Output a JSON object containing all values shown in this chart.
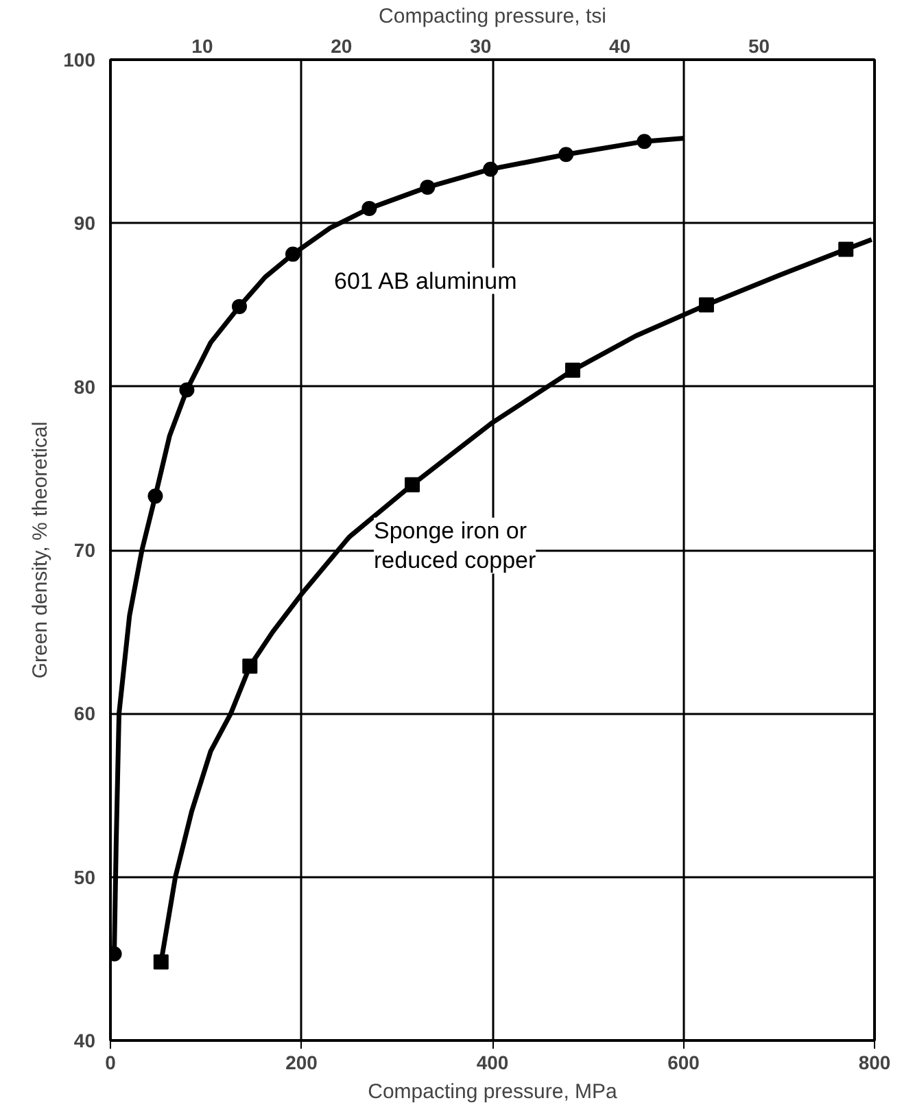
{
  "chart_data": {
    "type": "line",
    "xlabel": "Compacting pressure, MPa",
    "x2label": "Compacting pressure, tsi",
    "ylabel": "Green density, % theoretical",
    "xlim": [
      0,
      800
    ],
    "xticks": [
      0,
      200,
      400,
      600,
      800
    ],
    "ylim": [
      40,
      100
    ],
    "yticks": [
      40,
      50,
      60,
      70,
      80,
      90,
      100
    ],
    "x2lim": [
      3.4,
      58.3
    ],
    "x2ticks": [
      10,
      20,
      30,
      40,
      50
    ],
    "grid": true,
    "series": [
      {
        "color": "#000000",
        "x": [
          4,
          6,
          9,
          20,
          33,
          47,
          62,
          80,
          105,
          135,
          162,
          191,
          230,
          271,
          332,
          398,
          477,
          559,
          601
        ],
        "values": [
          45.3,
          52,
          60,
          66,
          70,
          73.3,
          77,
          79.8,
          82.7,
          84.9,
          86.7,
          88.1,
          89.7,
          90.9,
          92.2,
          93.3,
          94.2,
          95.0,
          95.2
        ]
      },
      {
        "color": "#000000",
        "x": [
          53,
          68,
          85,
          105,
          126,
          146,
          170,
          200,
          250,
          316,
          400,
          484,
          550,
          624,
          700,
          770,
          797
        ],
        "values": [
          44.8,
          50,
          54,
          57.7,
          60,
          62.9,
          65,
          67.3,
          70.8,
          74.0,
          77.8,
          81.0,
          83.1,
          85.0,
          86.8,
          88.4,
          89.0
        ]
      },
      {
        "type": "scatter",
        "name": "601 AB aluminum",
        "color": "#000000",
        "marker": "circle",
        "x": [
          4,
          47,
          80,
          135,
          191,
          271,
          332,
          398,
          477,
          559
        ],
        "values": [
          45.3,
          73.3,
          79.8,
          84.9,
          88.1,
          90.9,
          92.2,
          93.3,
          94.2,
          95.0
        ]
      },
      {
        "type": "scatter",
        "name": "Sponge iron or\nreduced copper",
        "color": "#000000",
        "marker": "square",
        "x": [
          53,
          146,
          316,
          484,
          624,
          770
        ],
        "values": [
          44.8,
          62.9,
          74.0,
          81.0,
          85.0,
          88.4
        ]
      }
    ]
  }
}
